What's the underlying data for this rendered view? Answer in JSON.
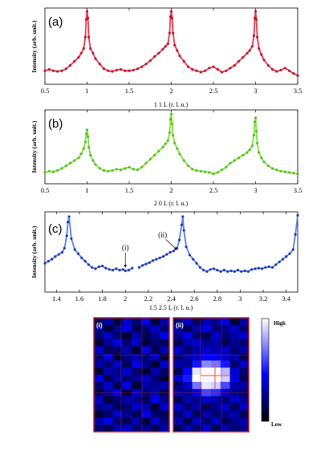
{
  "chart_data": [
    {
      "type": "line",
      "panel_label": "(a)",
      "ylabel": "Intensity (arb. unit.)",
      "xlabel": "1 1 L (r. l. u.)",
      "xlim": [
        0.5,
        3.5
      ],
      "xticks": [
        "0.5",
        "1",
        "1.5",
        "2",
        "2.5",
        "3",
        "3.5"
      ],
      "color": "#e8384f",
      "marker_color": "#c01830",
      "series": [
        {
          "x": [
            0.5,
            0.55,
            0.6,
            0.65,
            0.7,
            0.75,
            0.8,
            0.85,
            0.9,
            0.93,
            0.96,
            0.98,
            0.99,
            1.0,
            1.01,
            1.02,
            1.04,
            1.07,
            1.1,
            1.15,
            1.2,
            1.25,
            1.3,
            1.35,
            1.4,
            1.45,
            1.5,
            1.55,
            1.6,
            1.65,
            1.7,
            1.75,
            1.8,
            1.85,
            1.9,
            1.93,
            1.96,
            1.98,
            1.99,
            2.0,
            2.01,
            2.02,
            2.04,
            2.07,
            2.1,
            2.15,
            2.2,
            2.25,
            2.3,
            2.35,
            2.4,
            2.45,
            2.5,
            2.55,
            2.6,
            2.65,
            2.7,
            2.75,
            2.8,
            2.85,
            2.9,
            2.93,
            2.96,
            2.98,
            2.99,
            3.0,
            3.01,
            3.02,
            3.04,
            3.07,
            3.1,
            3.15,
            3.2,
            3.25,
            3.3,
            3.35,
            3.4,
            3.45,
            3.5
          ],
          "y": [
            0.12,
            0.14,
            0.12,
            0.11,
            0.12,
            0.15,
            0.2,
            0.26,
            0.32,
            0.38,
            0.45,
            0.62,
            0.88,
            1.0,
            0.9,
            0.62,
            0.45,
            0.38,
            0.3,
            0.22,
            0.15,
            0.12,
            0.11,
            0.13,
            0.14,
            0.12,
            0.12,
            0.13,
            0.15,
            0.18,
            0.22,
            0.27,
            0.33,
            0.38,
            0.44,
            0.48,
            0.52,
            0.68,
            0.92,
            1.0,
            0.9,
            0.68,
            0.5,
            0.42,
            0.34,
            0.26,
            0.18,
            0.14,
            0.12,
            0.1,
            0.12,
            0.16,
            0.18,
            0.14,
            0.1,
            0.12,
            0.16,
            0.2,
            0.26,
            0.32,
            0.38,
            0.42,
            0.48,
            0.64,
            0.9,
            1.0,
            0.88,
            0.62,
            0.45,
            0.36,
            0.28,
            0.2,
            0.14,
            0.11,
            0.13,
            0.16,
            0.12,
            0.08,
            0.05
          ]
        }
      ]
    },
    {
      "type": "line",
      "panel_label": "(b)",
      "ylabel": "Intensity (arb. unit.)",
      "xlabel": "2 0 L (r. l. u.)",
      "xlim": [
        0.5,
        3.5
      ],
      "xticks": [
        "0.5",
        "1",
        "1.5",
        "2",
        "2.5",
        "3",
        "3.5"
      ],
      "color": "#7ee040",
      "marker_color": "#58c020",
      "series": [
        {
          "x": [
            0.5,
            0.55,
            0.6,
            0.65,
            0.7,
            0.75,
            0.8,
            0.85,
            0.9,
            0.93,
            0.96,
            0.98,
            0.99,
            1.0,
            1.01,
            1.02,
            1.04,
            1.07,
            1.1,
            1.15,
            1.2,
            1.25,
            1.3,
            1.35,
            1.4,
            1.45,
            1.5,
            1.55,
            1.6,
            1.65,
            1.7,
            1.75,
            1.8,
            1.85,
            1.9,
            1.93,
            1.96,
            1.98,
            1.99,
            2.0,
            2.01,
            2.02,
            2.04,
            2.07,
            2.1,
            2.15,
            2.2,
            2.25,
            2.3,
            2.35,
            2.4,
            2.45,
            2.5,
            2.55,
            2.6,
            2.65,
            2.7,
            2.75,
            2.8,
            2.85,
            2.9,
            2.93,
            2.96,
            2.98,
            2.99,
            3.0,
            3.01,
            3.02,
            3.04,
            3.07,
            3.1,
            3.15,
            3.2,
            3.25,
            3.3,
            3.35,
            3.4,
            3.45,
            3.5
          ],
          "y": [
            0.12,
            0.14,
            0.13,
            0.15,
            0.18,
            0.22,
            0.26,
            0.3,
            0.34,
            0.4,
            0.48,
            0.58,
            0.7,
            0.76,
            0.66,
            0.5,
            0.38,
            0.3,
            0.24,
            0.18,
            0.15,
            0.14,
            0.15,
            0.17,
            0.16,
            0.18,
            0.2,
            0.17,
            0.16,
            0.2,
            0.26,
            0.32,
            0.38,
            0.44,
            0.5,
            0.55,
            0.6,
            0.72,
            0.92,
            1.0,
            0.85,
            0.68,
            0.56,
            0.48,
            0.4,
            0.3,
            0.22,
            0.17,
            0.15,
            0.14,
            0.13,
            0.12,
            0.1,
            0.12,
            0.16,
            0.2,
            0.26,
            0.3,
            0.34,
            0.38,
            0.42,
            0.46,
            0.52,
            0.68,
            0.88,
            0.94,
            0.74,
            0.56,
            0.42,
            0.34,
            0.28,
            0.22,
            0.18,
            0.16,
            0.14,
            0.13,
            0.12,
            0.11,
            0.1
          ]
        }
      ]
    },
    {
      "type": "line",
      "panel_label": "(c)",
      "ylabel": "Intensity (arb. unit.)",
      "xlabel": "1.5 2.5 L (r. l. u.)",
      "xlim": [
        1.3,
        3.5
      ],
      "xticks": [
        "1.4",
        "1.6",
        "1.8",
        "2",
        "2.2",
        "2.4",
        "2.6",
        "2.8",
        "3",
        "3.2",
        "3.4"
      ],
      "color": "#5a82e0",
      "marker_color": "#1e3cb4",
      "annotations": [
        {
          "label": "(i)",
          "x": 2.0,
          "y": 0.12
        },
        {
          "label": "(ii)",
          "x": 2.45,
          "y": 0.38
        }
      ],
      "series": [
        {
          "x": [
            1.3,
            1.33,
            1.36,
            1.39,
            1.42,
            1.45,
            1.47,
            1.49,
            1.5,
            1.51,
            1.53,
            1.56,
            1.59,
            1.62,
            1.65,
            1.68,
            1.71,
            1.74,
            1.77,
            1.8,
            1.83,
            1.86,
            1.89,
            1.92,
            1.95,
            1.98,
            2.0,
            2.03,
            2.06
          ],
          "y": [
            0.22,
            0.25,
            0.28,
            0.32,
            0.35,
            0.38,
            0.44,
            0.62,
            0.82,
            0.9,
            0.58,
            0.42,
            0.36,
            0.3,
            0.25,
            0.2,
            0.16,
            0.14,
            0.17,
            0.18,
            0.15,
            0.13,
            0.12,
            0.14,
            0.12,
            0.13,
            0.11,
            0.12,
            0.15
          ]
        },
        {
          "x": [
            2.12,
            2.15,
            2.18,
            2.21,
            2.24,
            2.27,
            2.3,
            2.33,
            2.36,
            2.39,
            2.42,
            2.45,
            2.47,
            2.49,
            2.5,
            2.51,
            2.53,
            2.56,
            2.59,
            2.62,
            2.65,
            2.68,
            2.71,
            2.74,
            2.77,
            2.8,
            2.83,
            2.86,
            2.89,
            2.92,
            2.95,
            2.98,
            3.01,
            3.04,
            3.07,
            3.1,
            3.13,
            3.16,
            3.19,
            3.22,
            3.25,
            3.28,
            3.31,
            3.34,
            3.37,
            3.4,
            3.43,
            3.46,
            3.48,
            3.5
          ],
          "y": [
            0.16,
            0.19,
            0.21,
            0.23,
            0.26,
            0.28,
            0.3,
            0.32,
            0.35,
            0.38,
            0.4,
            0.44,
            0.56,
            0.78,
            0.9,
            0.7,
            0.46,
            0.34,
            0.28,
            0.22,
            0.16,
            0.12,
            0.1,
            0.13,
            0.14,
            0.12,
            0.1,
            0.12,
            0.1,
            0.11,
            0.1,
            0.12,
            0.1,
            0.11,
            0.1,
            0.13,
            0.14,
            0.15,
            0.14,
            0.16,
            0.17,
            0.16,
            0.2,
            0.24,
            0.28,
            0.32,
            0.36,
            0.42,
            0.64,
            0.92
          ]
        }
      ]
    },
    {
      "type": "heatmap",
      "panel_label": "(i)",
      "rows": 16,
      "cols": 8,
      "values": [
        [
          0.15,
          0.3,
          0.1,
          0.35,
          0.2,
          0.4,
          0.1,
          0.3
        ],
        [
          0.3,
          0.1,
          0.25,
          0.4,
          0.15,
          0.2,
          0.35,
          0.2
        ],
        [
          0.2,
          0.35,
          0.2,
          0.1,
          0.3,
          0.15,
          0.25,
          0.4
        ],
        [
          0.1,
          0.25,
          0.4,
          0.2,
          0.35,
          0.1,
          0.2,
          0.15
        ],
        [
          0.35,
          0.15,
          0.2,
          0.3,
          0.1,
          0.4,
          0.15,
          0.3
        ],
        [
          0.2,
          0.4,
          0.1,
          0.25,
          0.3,
          0.2,
          0.35,
          0.1
        ],
        [
          0.3,
          0.2,
          0.35,
          0.15,
          0.4,
          0.25,
          0.1,
          0.35
        ],
        [
          0.1,
          0.3,
          0.25,
          0.35,
          0.2,
          0.1,
          0.3,
          0.2
        ],
        [
          0.4,
          0.15,
          0.3,
          0.2,
          0.25,
          0.35,
          0.2,
          0.1
        ],
        [
          0.2,
          0.35,
          0.15,
          0.4,
          0.1,
          0.3,
          0.25,
          0.3
        ],
        [
          0.15,
          0.25,
          0.4,
          0.1,
          0.35,
          0.2,
          0.3,
          0.15
        ],
        [
          0.35,
          0.1,
          0.2,
          0.3,
          0.25,
          0.15,
          0.4,
          0.25
        ],
        [
          0.25,
          0.3,
          0.15,
          0.2,
          0.35,
          0.3,
          0.1,
          0.35
        ],
        [
          0.1,
          0.2,
          0.35,
          0.25,
          0.15,
          0.4,
          0.2,
          0.15
        ],
        [
          0.3,
          0.4,
          0.2,
          0.15,
          0.3,
          0.1,
          0.35,
          0.2
        ],
        [
          0.2,
          0.15,
          0.3,
          0.35,
          0.2,
          0.25,
          0.15,
          0.3
        ]
      ]
    },
    {
      "type": "heatmap",
      "panel_label": "(ii)",
      "rows": 16,
      "cols": 8,
      "values": [
        [
          0.2,
          0.35,
          0.15,
          0.3,
          0.25,
          0.4,
          0.1,
          0.3
        ],
        [
          0.3,
          0.15,
          0.3,
          0.4,
          0.2,
          0.25,
          0.35,
          0.2
        ],
        [
          0.25,
          0.4,
          0.2,
          0.15,
          0.35,
          0.2,
          0.3,
          0.35
        ],
        [
          0.15,
          0.3,
          0.35,
          0.25,
          0.3,
          0.15,
          0.25,
          0.2
        ],
        [
          0.35,
          0.2,
          0.3,
          0.35,
          0.3,
          0.35,
          0.2,
          0.3
        ],
        [
          0.2,
          0.3,
          0.35,
          0.45,
          0.45,
          0.35,
          0.3,
          0.15
        ],
        [
          0.3,
          0.25,
          0.5,
          0.75,
          0.7,
          0.5,
          0.2,
          0.35
        ],
        [
          0.15,
          0.45,
          0.95,
          1.0,
          1.0,
          0.85,
          0.35,
          0.2
        ],
        [
          0.35,
          0.5,
          1.0,
          1.0,
          1.0,
          0.9,
          0.4,
          0.15
        ],
        [
          0.2,
          0.35,
          0.7,
          0.95,
          0.9,
          0.6,
          0.3,
          0.3
        ],
        [
          0.3,
          0.25,
          0.4,
          0.6,
          0.55,
          0.35,
          0.25,
          0.2
        ],
        [
          0.15,
          0.3,
          0.25,
          0.35,
          0.3,
          0.2,
          0.35,
          0.25
        ],
        [
          0.35,
          0.2,
          0.3,
          0.15,
          0.25,
          0.35,
          0.15,
          0.35
        ],
        [
          0.2,
          0.35,
          0.15,
          0.3,
          0.2,
          0.25,
          0.3,
          0.15
        ],
        [
          0.3,
          0.15,
          0.35,
          0.2,
          0.35,
          0.15,
          0.25,
          0.3
        ],
        [
          0.15,
          0.3,
          0.2,
          0.35,
          0.15,
          0.3,
          0.2,
          0.25
        ]
      ]
    }
  ],
  "colorbar": {
    "high_label": "High",
    "low_label": "Low"
  }
}
